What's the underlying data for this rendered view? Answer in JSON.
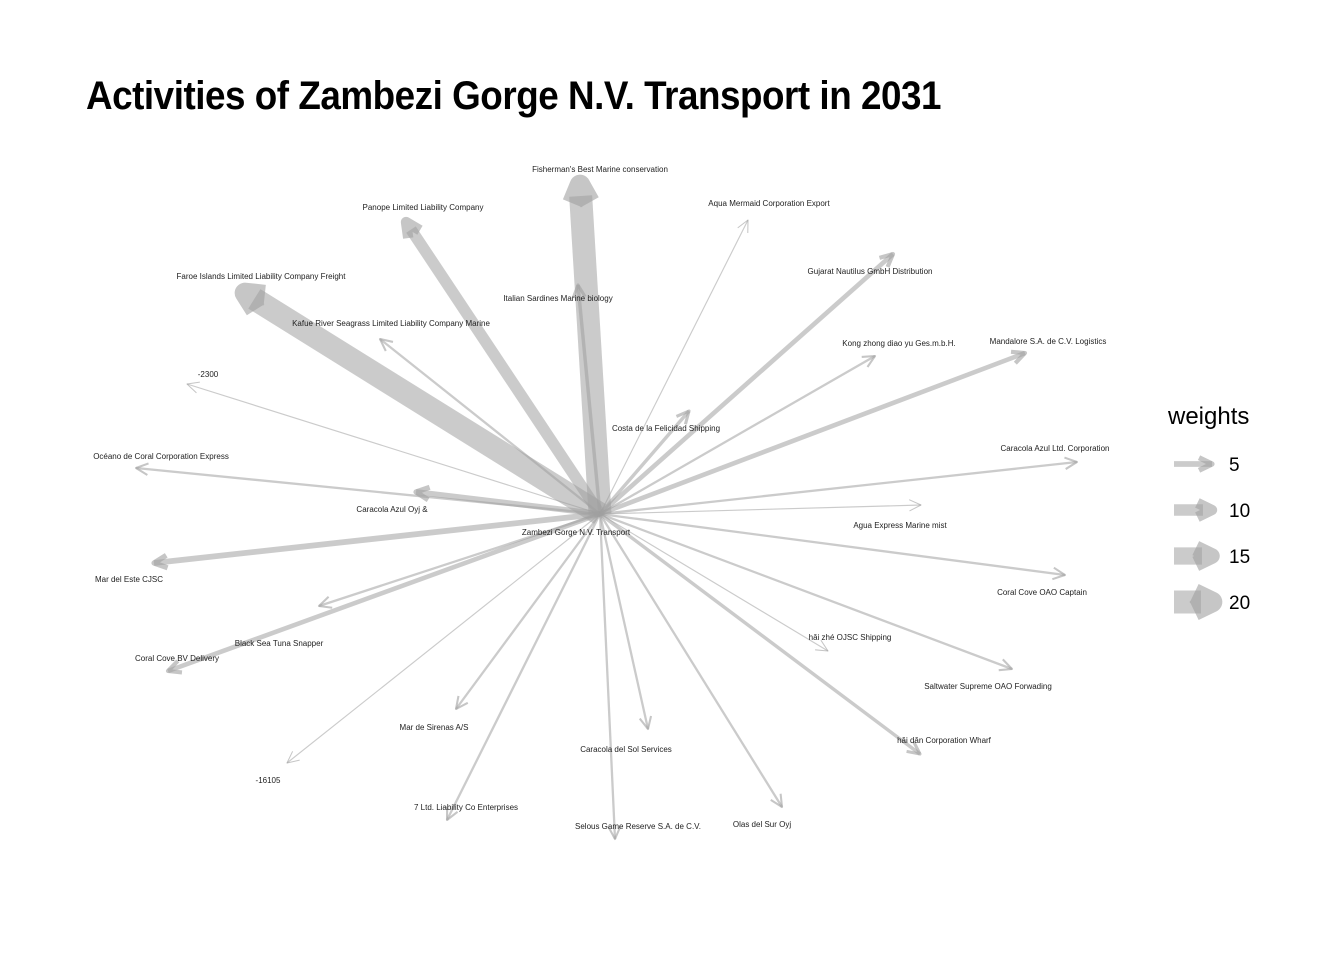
{
  "title": "Activities of Zambezi Gorge N.V. Transport in 2031",
  "legend": {
    "title": "weights",
    "items": [
      {
        "label": "5",
        "weight": 5
      },
      {
        "label": "10",
        "weight": 10
      },
      {
        "label": "15",
        "weight": 15
      },
      {
        "label": "20",
        "weight": 20
      }
    ]
  },
  "colors": {
    "edge": "#a0a0a0",
    "background": "#ffffff",
    "text": "#000000"
  },
  "graph": {
    "center": "Zambezi Gorge  N.V. Transport",
    "targets": [
      {
        "name": "Fisherman's Best Marine conservation",
        "weight": 20
      },
      {
        "name": "Panope Limited Liability Company",
        "weight": 10
      },
      {
        "name": "Aqua Mermaid Corporation Export",
        "weight": 1
      },
      {
        "name": "Gujarat   Nautilus GmbH Distribution",
        "weight": 4
      },
      {
        "name": "Italian Sardines Marine biology",
        "weight": 3
      },
      {
        "name": "Faroe Islands  Limited Liability Company Freight",
        "weight": 20
      },
      {
        "name": "Kafue River  Seagrass Limited Liability Company Marine",
        "weight": 2
      },
      {
        "name": "Kong zhong diao yu  Ges.m.b.H.",
        "weight": 2
      },
      {
        "name": "Mandalore S.A. de C.V. Logistics",
        "weight": 4
      },
      {
        "name": "-2300",
        "weight": 1
      },
      {
        "name": "Costa de la Felicidad Shipping",
        "weight": 3
      },
      {
        "name": "Océano de Coral Corporation Express",
        "weight": 2
      },
      {
        "name": "Caracola Azul Ltd. Corporation",
        "weight": 2
      },
      {
        "name": "Caracola Azul Oyj &",
        "weight": 5
      },
      {
        "name": "Agua Express Marine mist",
        "weight": 1
      },
      {
        "name": "Mar del Este CJSC",
        "weight": 5
      },
      {
        "name": "Coral Cove OAO Captain",
        "weight": 2
      },
      {
        "name": "Black Sea Tuna Snapper",
        "weight": 2
      },
      {
        "name": "Coral Cove BV Delivery",
        "weight": 4
      },
      {
        "name": "hǎi zhé OJSC Shipping",
        "weight": 1
      },
      {
        "name": "Saltwater Supreme OAO Forwading",
        "weight": 2
      },
      {
        "name": "Mar de Sirenas A/S",
        "weight": 2
      },
      {
        "name": "hǎi dǎn Corporation Wharf",
        "weight": 3
      },
      {
        "name": "Caracola del Sol Services",
        "weight": 2
      },
      {
        "name": "-16105",
        "weight": 1
      },
      {
        "name": "7 Ltd. Liability Co Enterprises",
        "weight": 2
      },
      {
        "name": "Selous Game Reserve  S.A. de C.V.",
        "weight": 2
      },
      {
        "name": "Olas del Sur Oyj",
        "weight": 2
      }
    ]
  }
}
